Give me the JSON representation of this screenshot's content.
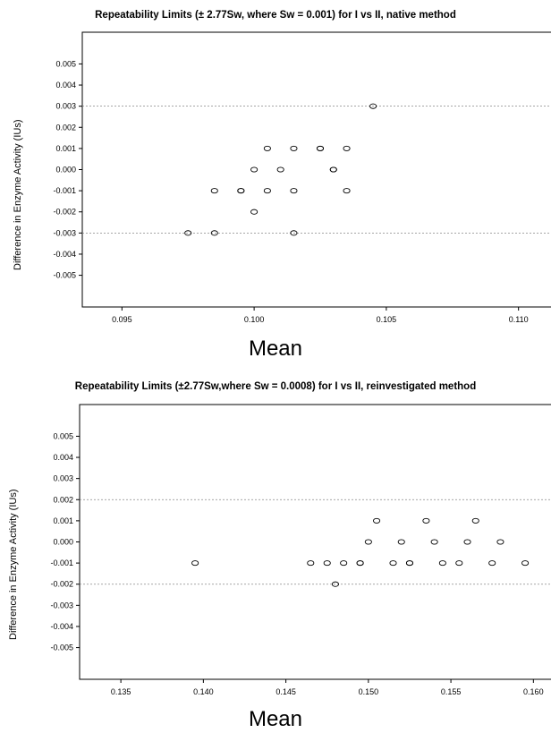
{
  "chart_data": [
    {
      "type": "scatter",
      "title": "Repeatability Limits (± 2.77Sw, where Sw = 0.001) for I vs II, native method",
      "xlabel": "Mean",
      "ylabel": "Difference in Enzyme Activity (IUs)",
      "xlim": [
        0.0935,
        0.1115
      ],
      "ylim": [
        -0.0065,
        0.0065
      ],
      "xticks": [
        "0.095",
        "0.100",
        "0.105",
        "0.110"
      ],
      "yticks": [
        "0.005",
        "0.004",
        "0.003",
        "0.002",
        "0.001",
        "0.000",
        "-0.001",
        "-0.002",
        "-0.003",
        "-0.004",
        "-0.005"
      ],
      "reference_lines": [
        0.003,
        -0.003
      ],
      "points": [
        {
          "x": 0.0975,
          "y": -0.003
        },
        {
          "x": 0.0985,
          "y": -0.003
        },
        {
          "x": 0.0985,
          "y": -0.001
        },
        {
          "x": 0.0995,
          "y": -0.001
        },
        {
          "x": 0.0995,
          "y": -0.001
        },
        {
          "x": 0.1,
          "y": -0.002
        },
        {
          "x": 0.1,
          "y": 0.0
        },
        {
          "x": 0.1005,
          "y": 0.001
        },
        {
          "x": 0.1005,
          "y": -0.001
        },
        {
          "x": 0.101,
          "y": 0.0
        },
        {
          "x": 0.1015,
          "y": 0.001
        },
        {
          "x": 0.1015,
          "y": -0.001
        },
        {
          "x": 0.1015,
          "y": -0.003
        },
        {
          "x": 0.1025,
          "y": 0.001
        },
        {
          "x": 0.1025,
          "y": 0.001
        },
        {
          "x": 0.103,
          "y": 0.0
        },
        {
          "x": 0.103,
          "y": 0.0
        },
        {
          "x": 0.1035,
          "y": 0.001
        },
        {
          "x": 0.1035,
          "y": -0.001
        },
        {
          "x": 0.1045,
          "y": 0.003
        }
      ],
      "grid": false
    },
    {
      "type": "scatter",
      "title": "Repeatability Limits (±2.77Sw,where Sw = 0.0008) for I vs II, reinvestigated method",
      "xlabel": "Mean",
      "ylabel": "Difference in Enzyme Activity (IUs)",
      "xlim": [
        0.1325,
        0.1615
      ],
      "ylim": [
        -0.0065,
        0.0065
      ],
      "xticks": [
        "0.135",
        "0.140",
        "0.145",
        "0.150",
        "0.155",
        "0.160"
      ],
      "yticks": [
        "0.005",
        "0.004",
        "0.003",
        "0.002",
        "0.001",
        "0.000",
        "-0.001",
        "-0.002",
        "-0.003",
        "-0.004",
        "-0.005"
      ],
      "reference_lines": [
        0.002,
        -0.002
      ],
      "points": [
        {
          "x": 0.1395,
          "y": -0.001
        },
        {
          "x": 0.1465,
          "y": -0.001
        },
        {
          "x": 0.1475,
          "y": -0.001
        },
        {
          "x": 0.148,
          "y": -0.002
        },
        {
          "x": 0.1485,
          "y": -0.001
        },
        {
          "x": 0.1495,
          "y": -0.001
        },
        {
          "x": 0.1495,
          "y": -0.001
        },
        {
          "x": 0.15,
          "y": 0.0
        },
        {
          "x": 0.1505,
          "y": 0.001
        },
        {
          "x": 0.1515,
          "y": -0.001
        },
        {
          "x": 0.152,
          "y": 0.0
        },
        {
          "x": 0.1525,
          "y": -0.001
        },
        {
          "x": 0.1525,
          "y": -0.001
        },
        {
          "x": 0.1535,
          "y": 0.001
        },
        {
          "x": 0.154,
          "y": 0.0
        },
        {
          "x": 0.1545,
          "y": -0.001
        },
        {
          "x": 0.1555,
          "y": -0.001
        },
        {
          "x": 0.156,
          "y": 0.0
        },
        {
          "x": 0.1565,
          "y": 0.001
        },
        {
          "x": 0.1575,
          "y": -0.001
        },
        {
          "x": 0.158,
          "y": 0.0
        },
        {
          "x": 0.1595,
          "y": -0.001
        }
      ],
      "grid": false
    }
  ]
}
